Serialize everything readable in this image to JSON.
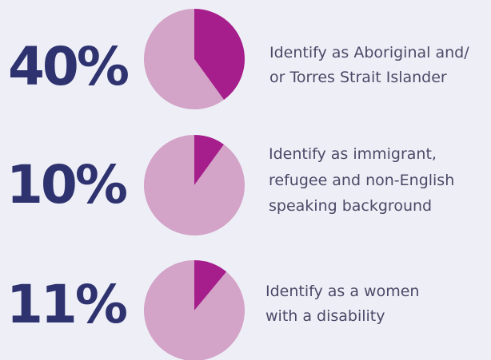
{
  "chart_data": [
    {
      "type": "pie",
      "values": [
        40,
        60
      ],
      "value_labels": [
        "40%",
        null
      ],
      "colors": [
        "#a61e8c",
        "#d3a3c8"
      ],
      "caption": [
        "Identify as Aboriginal and/",
        "or Torres Strait Islander"
      ]
    },
    {
      "type": "pie",
      "values": [
        10,
        90
      ],
      "value_labels": [
        "10%",
        null
      ],
      "colors": [
        "#a61e8c",
        "#d3a3c8"
      ],
      "caption": [
        "Identify as immigrant,",
        "refugee and non-English",
        "speaking background"
      ]
    },
    {
      "type": "pie",
      "values": [
        11,
        89
      ],
      "value_labels": [
        "11%",
        null
      ],
      "colors": [
        "#a61e8c",
        "#d3a3c8"
      ],
      "caption": [
        "Identify as a women",
        "with a disability"
      ]
    }
  ]
}
